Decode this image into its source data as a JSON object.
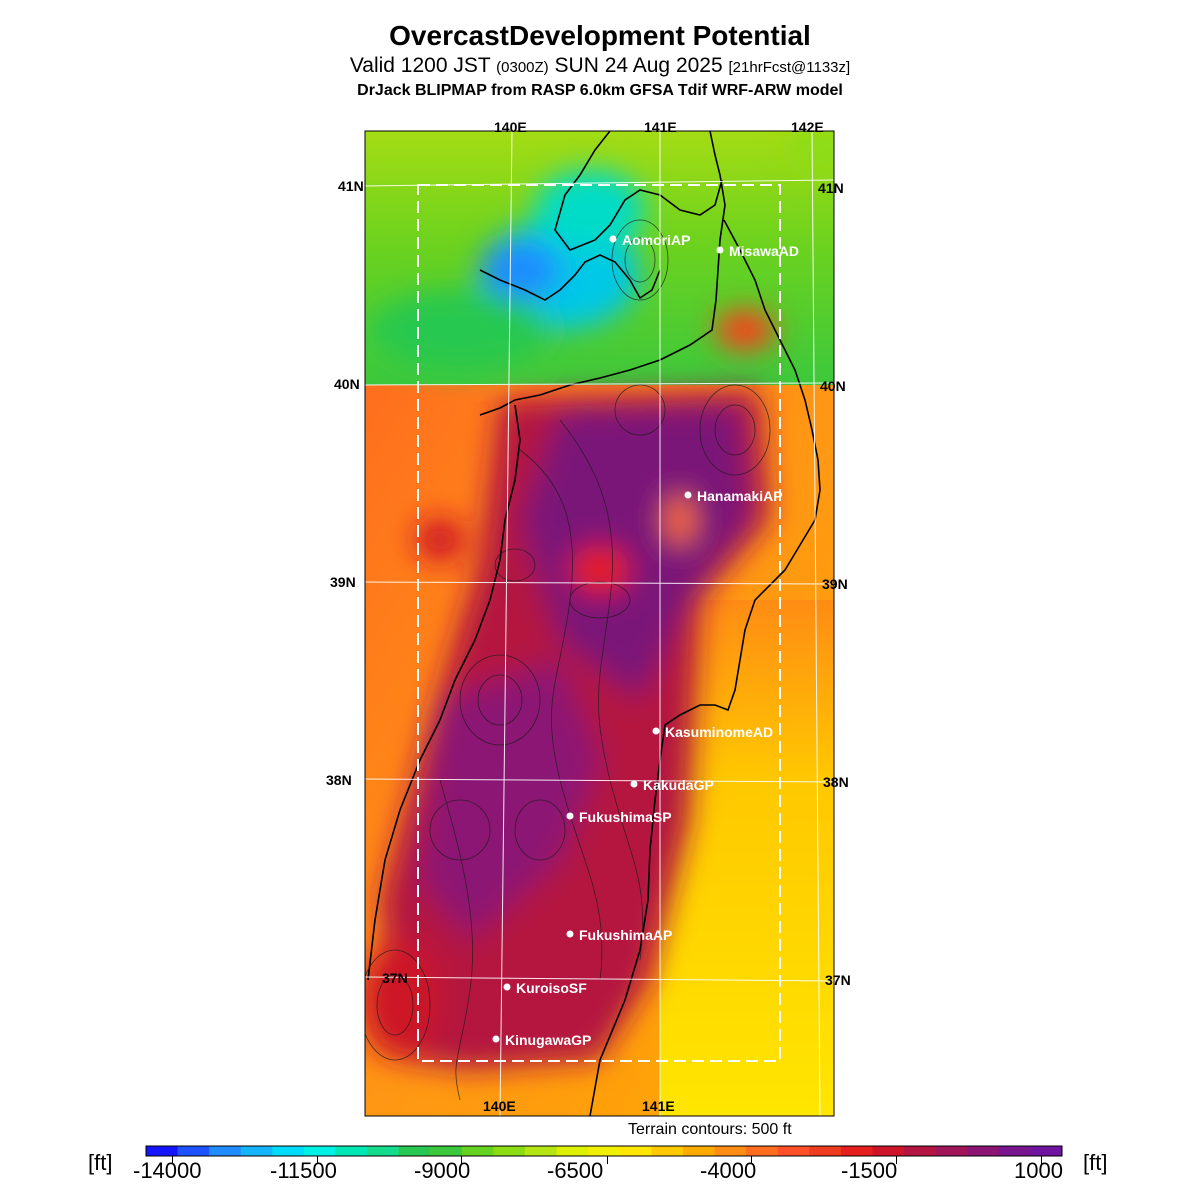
{
  "header": {
    "title": "OvercastDevelopment Potential",
    "valid_prefix": "Valid 1200 JST",
    "valid_utc": "(0300Z)",
    "valid_date": "SUN 24 Aug 2025",
    "forecast": "[21hrFcst@1133z]",
    "model": "DrJack BLIPMAP from RASP 6.0km GFSA Tdif WRF-ARW model"
  },
  "axes": {
    "lon_top": [
      "140E",
      "141E",
      "142E"
    ],
    "lon_bottom": [
      "140E",
      "141E"
    ],
    "lat_left": [
      "41N",
      "40N",
      "39N",
      "38N",
      "37N"
    ],
    "lat_right": [
      "41N",
      "40N",
      "39N",
      "38N",
      "37N"
    ]
  },
  "sites": [
    {
      "name": "AomoriAP"
    },
    {
      "name": "MisawaAD"
    },
    {
      "name": "HanamakiAP"
    },
    {
      "name": "KasuminomeAD"
    },
    {
      "name": "KakudaGP"
    },
    {
      "name": "FukushimaSP"
    },
    {
      "name": "FukushimaAP"
    },
    {
      "name": "KuroisoSF"
    },
    {
      "name": "KinugawaGP"
    }
  ],
  "terrain_note": "Terrain contours: 500 ft",
  "colorbar": {
    "unit": "[ft]",
    "ticks": [
      "-14000",
      "-11500",
      "-9000",
      "-6500",
      "-4000",
      "-1500",
      "1000"
    ],
    "colors": [
      "#1414ff",
      "#1c52ff",
      "#1f8cff",
      "#14b4ff",
      "#00dcff",
      "#00f0e6",
      "#00e6b4",
      "#14dc8c",
      "#28c850",
      "#3cc83c",
      "#64d21e",
      "#8cdc14",
      "#b4e614",
      "#dcf000",
      "#f0f000",
      "#ffe600",
      "#ffc800",
      "#ffaa00",
      "#ff8c14",
      "#ff6e1e",
      "#ff5028",
      "#f03c1e",
      "#e61e1e",
      "#cd1428",
      "#b41441",
      "#a0145a",
      "#8c1473",
      "#78148c",
      "#6e14a0"
    ]
  }
}
